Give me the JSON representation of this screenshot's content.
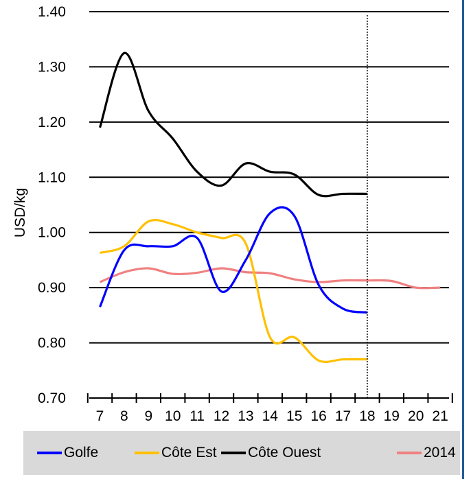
{
  "chart_data": {
    "type": "line",
    "ylabel": "USD/kg",
    "xlabel": "",
    "title": "",
    "ylim": [
      0.7,
      1.4
    ],
    "yticks": [
      "0.70",
      "0.80",
      "0.90",
      "1.00",
      "1.10",
      "1.20",
      "1.30",
      "1.40"
    ],
    "xlim": [
      7,
      21
    ],
    "xticks": [
      "7",
      "8",
      "9",
      "10",
      "11",
      "12",
      "13",
      "14",
      "15",
      "16",
      "17",
      "18",
      "19",
      "20",
      "21"
    ],
    "grid": "horizontal",
    "reference_line_x": 18,
    "legend_position": "bottom",
    "series": [
      {
        "name": "Golfe",
        "color": "#0000ff",
        "x": [
          7,
          8,
          9,
          10,
          11,
          12,
          13,
          14,
          15,
          16,
          17,
          18
        ],
        "y": [
          0.865,
          0.968,
          0.975,
          0.975,
          0.99,
          0.893,
          0.95,
          1.035,
          1.03,
          0.905,
          0.862,
          0.855
        ]
      },
      {
        "name": "Côte Est",
        "color": "#ffc000",
        "x": [
          7,
          8,
          9,
          10,
          11,
          12,
          13,
          14,
          15,
          16,
          17,
          18
        ],
        "y": [
          0.963,
          0.975,
          1.02,
          1.015,
          1.0,
          0.99,
          0.98,
          0.81,
          0.81,
          0.768,
          0.77,
          0.77
        ]
      },
      {
        "name": "Côte Ouest",
        "color": "#000000",
        "x": [
          7,
          8,
          9,
          10,
          11,
          12,
          13,
          14,
          15,
          16,
          17,
          18
        ],
        "y": [
          1.19,
          1.325,
          1.22,
          1.17,
          1.11,
          1.085,
          1.125,
          1.11,
          1.105,
          1.068,
          1.07,
          1.07
        ]
      },
      {
        "name": "2014",
        "color": "#f08080",
        "x": [
          7,
          8,
          9,
          10,
          11,
          12,
          13,
          14,
          15,
          16,
          17,
          18,
          19,
          20,
          21
        ],
        "y": [
          0.91,
          0.928,
          0.935,
          0.925,
          0.927,
          0.935,
          0.928,
          0.926,
          0.915,
          0.91,
          0.913,
          0.913,
          0.912,
          0.9,
          0.9
        ]
      }
    ]
  }
}
